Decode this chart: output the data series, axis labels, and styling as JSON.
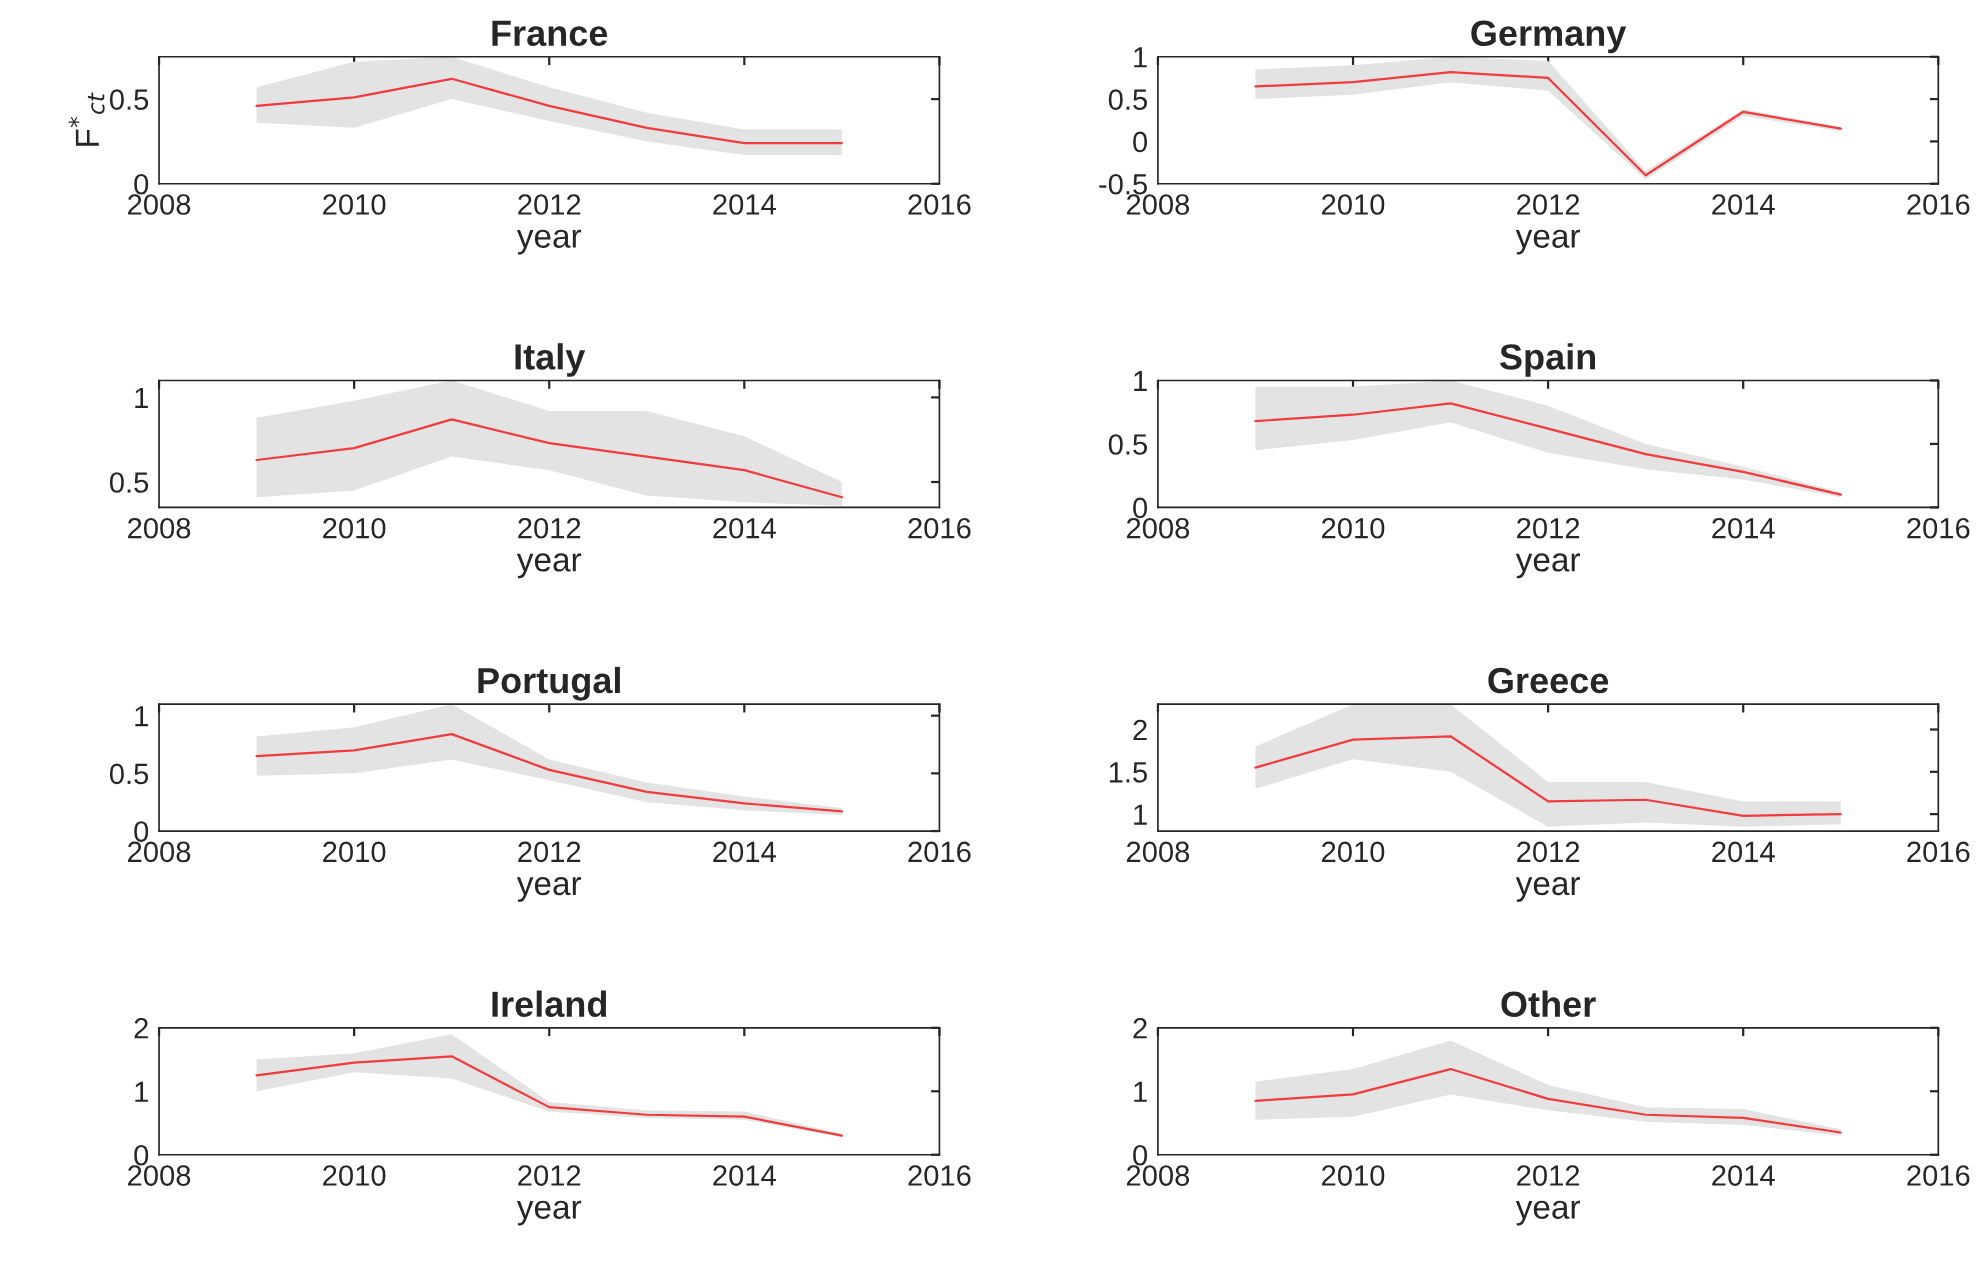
{
  "chart_data": [
    {
      "type": "line",
      "title": "France",
      "xlabel": "year",
      "ylabel": "F$^{*}$$_{ct}$",
      "x": [
        2009,
        2010,
        2011,
        2012,
        2013,
        2014,
        2015
      ],
      "xlim": [
        2008,
        2016
      ],
      "xticks": [
        2008,
        2010,
        2012,
        2014,
        2016
      ],
      "ylim": [
        0,
        0.75
      ],
      "yticks": [
        0,
        0.5
      ],
      "grid": false,
      "series": [
        {
          "color": "#f03c3c",
          "values": [
            0.46,
            0.51,
            0.62,
            0.46,
            0.33,
            0.24,
            0.24
          ],
          "lower": [
            0.36,
            0.33,
            0.5,
            0.37,
            0.25,
            0.17,
            0.17
          ],
          "upper": [
            0.57,
            0.72,
            0.75,
            0.57,
            0.42,
            0.32,
            0.32
          ]
        }
      ]
    },
    {
      "type": "line",
      "title": "Germany",
      "xlabel": "year",
      "x": [
        2009,
        2010,
        2011,
        2012,
        2013,
        2014,
        2015
      ],
      "xlim": [
        2008,
        2016
      ],
      "xticks": [
        2008,
        2010,
        2012,
        2014,
        2016
      ],
      "ylim": [
        -0.5,
        1
      ],
      "yticks": [
        -0.5,
        0,
        0.5,
        1
      ],
      "grid": false,
      "series": [
        {
          "color": "#f03c3c",
          "values": [
            0.65,
            0.7,
            0.82,
            0.75,
            -0.4,
            0.35,
            0.15
          ],
          "lower": [
            0.5,
            0.55,
            0.7,
            0.6,
            -0.45,
            0.3,
            0.12
          ],
          "upper": [
            0.85,
            0.9,
            1.0,
            0.95,
            -0.35,
            0.38,
            0.17
          ]
        }
      ]
    },
    {
      "type": "line",
      "title": "Italy",
      "xlabel": "year",
      "x": [
        2009,
        2010,
        2011,
        2012,
        2013,
        2014,
        2015
      ],
      "xlim": [
        2008,
        2016
      ],
      "xticks": [
        2008,
        2010,
        2012,
        2014,
        2016
      ],
      "ylim": [
        0.35,
        1.1
      ],
      "yticks": [
        0.5,
        1
      ],
      "grid": false,
      "series": [
        {
          "color": "#f03c3c",
          "values": [
            0.63,
            0.7,
            0.87,
            0.73,
            0.65,
            0.57,
            0.41
          ],
          "lower": [
            0.41,
            0.45,
            0.65,
            0.57,
            0.42,
            0.38,
            0.36
          ],
          "upper": [
            0.88,
            0.98,
            1.1,
            0.92,
            0.92,
            0.77,
            0.5
          ]
        }
      ]
    },
    {
      "type": "line",
      "title": "Spain",
      "xlabel": "year",
      "x": [
        2009,
        2010,
        2011,
        2012,
        2013,
        2014,
        2015
      ],
      "xlim": [
        2008,
        2016
      ],
      "xticks": [
        2008,
        2010,
        2012,
        2014,
        2016
      ],
      "ylim": [
        0,
        1
      ],
      "yticks": [
        0,
        0.5,
        1
      ],
      "grid": false,
      "series": [
        {
          "color": "#f03c3c",
          "values": [
            0.68,
            0.73,
            0.82,
            0.62,
            0.42,
            0.28,
            0.1
          ],
          "lower": [
            0.45,
            0.53,
            0.67,
            0.43,
            0.3,
            0.22,
            0.08
          ],
          "upper": [
            0.95,
            0.95,
            1.0,
            0.8,
            0.5,
            0.32,
            0.12
          ]
        }
      ]
    },
    {
      "type": "line",
      "title": "Portugal",
      "xlabel": "year",
      "x": [
        2009,
        2010,
        2011,
        2012,
        2013,
        2014,
        2015
      ],
      "xlim": [
        2008,
        2016
      ],
      "xticks": [
        2008,
        2010,
        2012,
        2014,
        2016
      ],
      "ylim": [
        0,
        1.1
      ],
      "yticks": [
        0,
        0.5,
        1
      ],
      "grid": false,
      "series": [
        {
          "color": "#f03c3c",
          "values": [
            0.65,
            0.7,
            0.84,
            0.53,
            0.34,
            0.24,
            0.17
          ],
          "lower": [
            0.48,
            0.5,
            0.62,
            0.44,
            0.25,
            0.18,
            0.14
          ],
          "upper": [
            0.82,
            0.9,
            1.1,
            0.62,
            0.42,
            0.3,
            0.2
          ]
        }
      ]
    },
    {
      "type": "line",
      "title": "Greece",
      "xlabel": "year",
      "x": [
        2009,
        2010,
        2011,
        2012,
        2013,
        2014,
        2015
      ],
      "xlim": [
        2008,
        2016
      ],
      "xticks": [
        2008,
        2010,
        2012,
        2014,
        2016
      ],
      "ylim": [
        0.8,
        2.3
      ],
      "yticks": [
        1,
        1.5,
        2
      ],
      "grid": false,
      "series": [
        {
          "color": "#f03c3c",
          "values": [
            1.55,
            1.88,
            1.92,
            1.15,
            1.17,
            0.98,
            1.0
          ],
          "lower": [
            1.3,
            1.65,
            1.5,
            0.85,
            0.9,
            0.85,
            0.88
          ],
          "upper": [
            1.8,
            2.3,
            2.3,
            1.38,
            1.38,
            1.15,
            1.15
          ]
        }
      ]
    },
    {
      "type": "line",
      "title": "Ireland",
      "xlabel": "year",
      "x": [
        2009,
        2010,
        2011,
        2012,
        2013,
        2014,
        2015
      ],
      "xlim": [
        2008,
        2016
      ],
      "xticks": [
        2008,
        2010,
        2012,
        2014,
        2016
      ],
      "ylim": [
        0,
        2
      ],
      "yticks": [
        0,
        1,
        2
      ],
      "grid": false,
      "series": [
        {
          "color": "#f03c3c",
          "values": [
            1.25,
            1.45,
            1.55,
            0.75,
            0.63,
            0.6,
            0.3
          ],
          "lower": [
            1.0,
            1.3,
            1.2,
            0.68,
            0.58,
            0.55,
            0.28
          ],
          "upper": [
            1.5,
            1.6,
            1.9,
            0.83,
            0.7,
            0.68,
            0.33
          ]
        }
      ]
    },
    {
      "type": "line",
      "title": "Other",
      "xlabel": "year",
      "x": [
        2009,
        2010,
        2011,
        2012,
        2013,
        2014,
        2015
      ],
      "xlim": [
        2008,
        2016
      ],
      "xticks": [
        2008,
        2010,
        2012,
        2014,
        2016
      ],
      "ylim": [
        0,
        2
      ],
      "yticks": [
        0,
        1,
        2
      ],
      "grid": false,
      "series": [
        {
          "color": "#f03c3c",
          "values": [
            0.85,
            0.95,
            1.35,
            0.88,
            0.63,
            0.58,
            0.35
          ],
          "lower": [
            0.55,
            0.6,
            0.95,
            0.7,
            0.52,
            0.47,
            0.3
          ],
          "upper": [
            1.15,
            1.35,
            1.8,
            1.1,
            0.75,
            0.72,
            0.4
          ]
        }
      ]
    }
  ]
}
